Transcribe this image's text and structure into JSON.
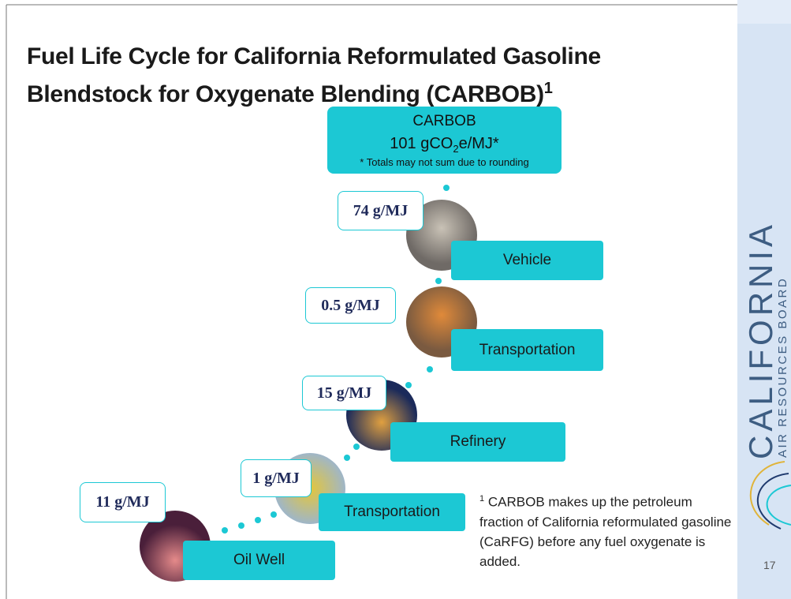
{
  "header": {
    "title": "Fuel Life Cycle for California Reformulated Gasoline Blendstock for Oxygenate Blending (CARBOB)",
    "title_note": "1"
  },
  "total": {
    "name": "CARBOB",
    "intensity_parts": [
      "101 gCO",
      "2",
      "e/MJ*"
    ],
    "note": "* Totals may not sum due to rounding"
  },
  "stages": [
    {
      "label": "Vehicle",
      "value": "74 g/MJ"
    },
    {
      "label": "Transportation",
      "value": "0.5 g/MJ"
    },
    {
      "label": "Refinery",
      "value": "15 g/MJ"
    },
    {
      "label": "Transportation",
      "value": "1 g/MJ"
    },
    {
      "label": "Oil Well",
      "value": "11 g/MJ"
    }
  ],
  "footnote": {
    "marker": "1",
    "text": "CARBOB makes up the petroleum fraction of California reformulated gasoline (CaRFG) before any fuel oxygenate is added."
  },
  "sidebar": {
    "logo_main": "CALIFORNIA",
    "logo_sub": "AIR RESOURCES BOARD",
    "page_number": "17"
  }
}
